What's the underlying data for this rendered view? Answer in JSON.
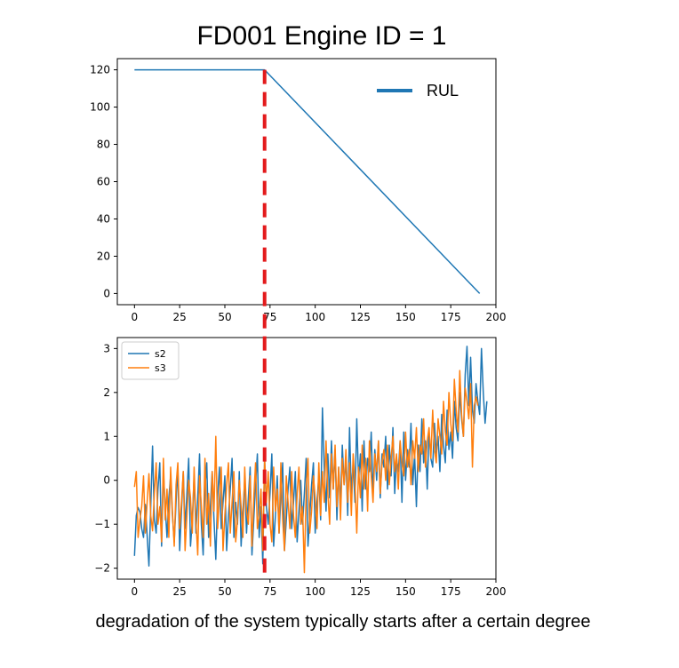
{
  "title": "FD001 Engine ID = 1",
  "caption": "degradation of the system typically starts after a certain degree",
  "colors": {
    "blue": "#1f77b4",
    "orange": "#ff7f0e",
    "marker": "#e31a1c",
    "axis": "#000000"
  },
  "marker": {
    "x": 72,
    "style": "dashed",
    "color": "#e31a1c"
  },
  "chart_data": [
    {
      "type": "line",
      "title": "",
      "xlabel": "",
      "ylabel": "",
      "xlim": [
        -9.5,
        200
      ],
      "ylim": [
        -6,
        126
      ],
      "x_ticks": [
        0,
        25,
        50,
        75,
        100,
        125,
        150,
        175,
        200
      ],
      "y_ticks": [
        0,
        20,
        40,
        60,
        80,
        100,
        120
      ],
      "grid": false,
      "legend_position": "top-right",
      "series": [
        {
          "name": "RUL",
          "color": "#1f77b4",
          "x": [
            0,
            72,
            191
          ],
          "y": [
            120,
            120,
            0
          ]
        }
      ]
    },
    {
      "type": "line",
      "title": "",
      "xlabel": "",
      "ylabel": "",
      "xlim": [
        -9.5,
        200
      ],
      "ylim": [
        -2.25,
        3.25
      ],
      "x_ticks": [
        0,
        25,
        50,
        75,
        100,
        125,
        150,
        175,
        200
      ],
      "y_ticks": [
        -2,
        -1,
        0,
        1,
        2,
        3
      ],
      "grid": false,
      "legend_position": "top-left",
      "x_start": 0,
      "x_step": 1,
      "series": [
        {
          "name": "s2",
          "color": "#1f77b4",
          "values": [
            -1.72,
            -0.8,
            -0.62,
            -0.72,
            -1.1,
            -1.3,
            -0.55,
            -1.25,
            -1.95,
            -0.6,
            0.78,
            -0.9,
            -1.2,
            -0.2,
            0.4,
            -1.5,
            0.2,
            -0.6,
            -1.3,
            -0.4,
            0.1,
            -0.8,
            -1.4,
            -0.5,
            0.3,
            -1.6,
            -0.7,
            0.2,
            -1.1,
            -0.3,
            0.5,
            -1.5,
            -0.9,
            0.1,
            -1.2,
            -0.4,
            0.6,
            -1.0,
            -1.7,
            -0.2,
            0.4,
            -1.3,
            -0.6,
            0.2,
            -0.9,
            -1.8,
            -0.4,
            0.3,
            -1.1,
            -0.5,
            0.1,
            -1.6,
            -0.8,
            -0.2,
            0.5,
            -1.3,
            -0.5,
            -1.0,
            0.2,
            -1.5,
            -0.7,
            0.0,
            -1.2,
            -0.4,
            0.3,
            -1.7,
            -0.9,
            -0.1,
            0.6,
            -1.3,
            -0.6,
            -1.9,
            0.5,
            -0.6,
            -1.0,
            -0.3,
            0.6,
            -1.5,
            -0.8,
            0.1,
            -1.2,
            -0.4,
            0.4,
            -1.6,
            -0.9,
            -0.2,
            0.3,
            -1.1,
            -0.5,
            0.2,
            -1.4,
            -0.7,
            0.0,
            -1.0,
            -0.3,
            0.5,
            -1.5,
            -0.8,
            -0.1,
            0.4,
            -1.2,
            -0.5,
            0.1,
            -0.9,
            1.65,
            0.3,
            -0.7,
            0.6,
            -0.4,
            0.9,
            -0.2,
            0.7,
            -0.9,
            0.3,
            -0.6,
            0.8,
            -0.1,
            0.5,
            -0.8,
            1.2,
            -0.3,
            0.4,
            -0.5,
            1.4,
            0.0,
            0.6,
            -0.7,
            0.9,
            -0.2,
            0.5,
            0.2,
            1.1,
            -0.3,
            0.7,
            0.0,
            0.9,
            -0.4,
            0.6,
            0.3,
            1.0,
            -0.2,
            0.8,
            0.1,
            1.2,
            -0.3,
            0.5,
            0.2,
            0.9,
            -0.5,
            1.1,
            0.0,
            0.7,
            0.3,
            1.3,
            -0.1,
            0.6,
            -0.6,
            0.8,
            0.2,
            1.4,
            0.4,
            0.9,
            -0.2,
            1.1,
            0.5,
            0.3,
            1.3,
            0.6,
            1.0,
            0.2,
            1.5,
            0.8,
            0.4,
            1.6,
            0.7,
            1.1,
            0.5,
            1.8,
            1.2,
            0.9,
            2.0,
            1.4,
            1.0,
            2.4,
            3.05,
            1.7,
            2.8,
            1.6,
            1.3,
            2.2,
            1.8,
            1.5,
            3.0,
            2.0,
            1.3,
            1.8
          ]
        },
        {
          "name": "s3",
          "color": "#ff7f0e",
          "values": [
            -0.15,
            0.2,
            -1.3,
            -0.9,
            -0.6,
            0.1,
            -1.2,
            -0.5,
            0.15,
            -0.8,
            -1.15,
            -0.3,
            0.4,
            -1.0,
            -0.6,
            -1.4,
            0.5,
            -0.9,
            -0.2,
            -1.3,
            0.3,
            -0.7,
            -1.5,
            -0.1,
            0.4,
            -1.1,
            -0.5,
            0.2,
            -1.6,
            -0.8,
            0.0,
            -0.4,
            -1.2,
            0.3,
            -0.9,
            -1.7,
            0.1,
            -0.6,
            -1.3,
            0.5,
            -1.0,
            -0.3,
            -1.5,
            0.2,
            -0.7,
            1.0,
            -1.1,
            -0.4,
            0.3,
            -1.6,
            -0.8,
            -0.1,
            0.4,
            -1.2,
            -0.5,
            0.2,
            -1.4,
            -0.9,
            0.0,
            -0.6,
            -1.3,
            0.3,
            -0.7,
            -1.0,
            0.1,
            -1.5,
            -0.4,
            0.4,
            -1.1,
            -0.8,
            -0.2,
            -1.6,
            0.5,
            -0.5,
            0.2,
            -1.0,
            -1.4,
            0.3,
            -0.7,
            -0.2,
            -1.2,
            0.4,
            -0.9,
            -1.6,
            0.1,
            -0.5,
            -1.1,
            0.2,
            -0.8,
            -1.3,
            -0.3,
            0.3,
            -1.0,
            -0.6,
            -2.1,
            -0.2,
            0.5,
            -1.2,
            -0.7,
            0.1,
            -0.4,
            -1.1,
            0.4,
            -0.8,
            0.2,
            -0.5,
            0.9,
            -0.3,
            -1.0,
            0.6,
            -0.2,
            0.8,
            -0.6,
            0.3,
            -0.9,
            0.5,
            -0.1,
            0.7,
            -0.5,
            0.4,
            -0.8,
            0.6,
            0.0,
            -1.2,
            0.3,
            -0.4,
            0.8,
            -0.2,
            0.5,
            -0.7,
            0.9,
            0.1,
            -0.5,
            0.6,
            0.2,
            0.9,
            -0.3,
            0.4,
            0.7,
            0.0,
            0.8,
            -0.1,
            0.5,
            1.0,
            0.2,
            0.6,
            -0.2,
            0.9,
            0.4,
            0.1,
            1.1,
            0.3,
            0.7,
            -0.1,
            0.9,
            0.5,
            1.2,
            0.2,
            0.8,
            0.6,
            1.4,
            0.3,
            0.9,
            1.2,
            0.5,
            1.6,
            0.7,
            0.4,
            1.4,
            1.0,
            0.6,
            1.8,
            1.1,
            0.8,
            2.0,
            1.3,
            0.9,
            2.3,
            1.6,
            1.1,
            2.5,
            1.5,
            1.0,
            2.1,
            1.8,
            1.4,
            2.2,
            0.3,
            1.7,
            1.9,
            1.7
          ]
        }
      ]
    }
  ]
}
